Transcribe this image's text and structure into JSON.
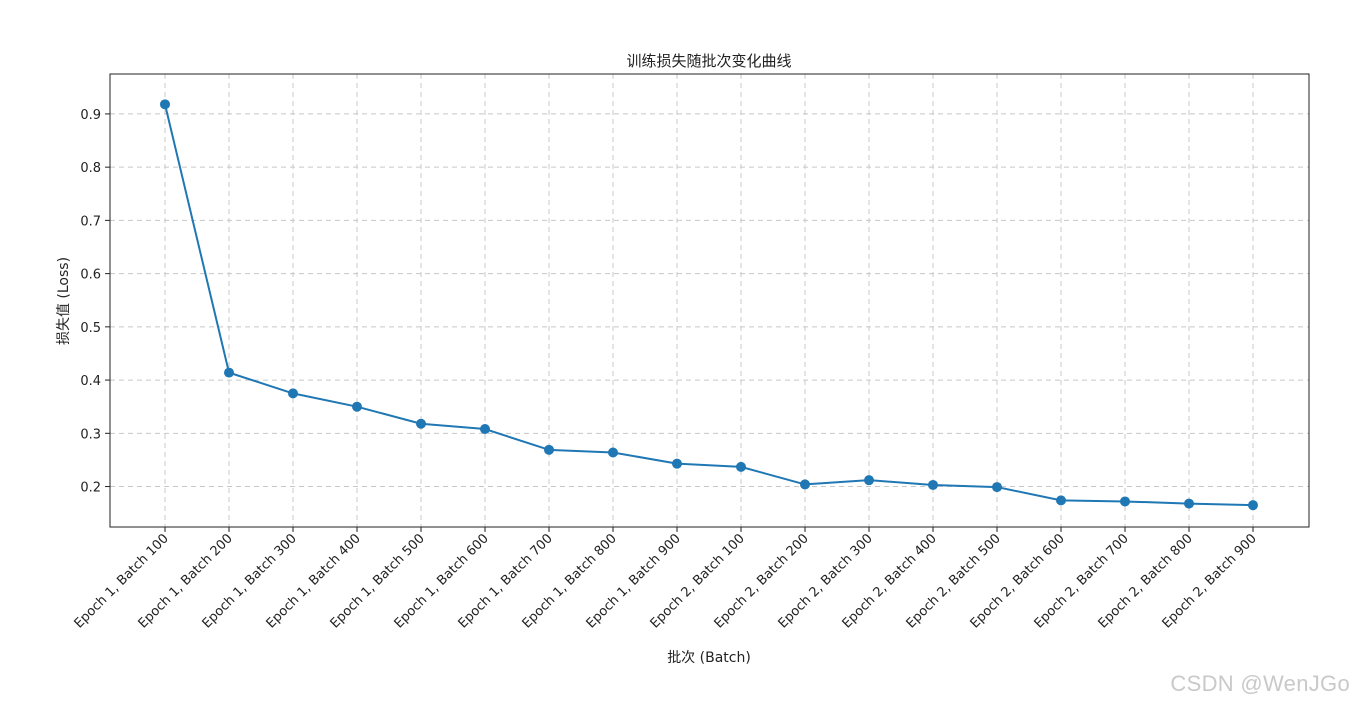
{
  "watermark": "CSDN @WenJGo",
  "chart_data": {
    "type": "line",
    "title": "训练损失随批次变化曲线",
    "xlabel": "批次 (Batch)",
    "ylabel": "损失值 (Loss)",
    "categories": [
      "Epoch 1, Batch 100",
      "Epoch 1, Batch 200",
      "Epoch 1, Batch 300",
      "Epoch 1, Batch 400",
      "Epoch 1, Batch 500",
      "Epoch 1, Batch 600",
      "Epoch 1, Batch 700",
      "Epoch 1, Batch 800",
      "Epoch 1, Batch 900",
      "Epoch 2, Batch 100",
      "Epoch 2, Batch 200",
      "Epoch 2, Batch 300",
      "Epoch 2, Batch 400",
      "Epoch 2, Batch 500",
      "Epoch 2, Batch 600",
      "Epoch 2, Batch 700",
      "Epoch 2, Batch 800",
      "Epoch 2, Batch 900"
    ],
    "series": [
      {
        "values": [
          0.918,
          0.414,
          0.375,
          0.35,
          0.318,
          0.308,
          0.269,
          0.264,
          0.243,
          0.237,
          0.204,
          0.212,
          0.203,
          0.199,
          0.174,
          0.172,
          0.168,
          0.165
        ],
        "color": "#1f77b4",
        "marker": "circle"
      }
    ],
    "yticks": [
      0.2,
      0.3,
      0.4,
      0.5,
      0.6,
      0.7,
      0.8,
      0.9
    ],
    "ylim": [
      0.124,
      0.975
    ],
    "grid": true,
    "grid_style": "dashed",
    "legend": "none"
  }
}
